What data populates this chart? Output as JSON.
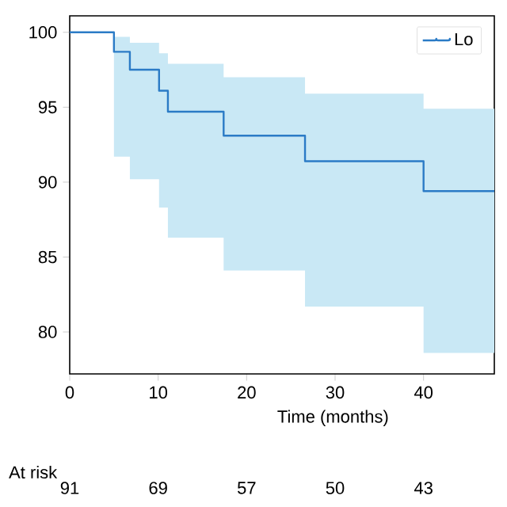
{
  "chart_data": {
    "type": "step",
    "xlabel": "Time (months)",
    "xlim": [
      0,
      48
    ],
    "xticks": [
      0,
      10,
      20,
      30,
      40
    ],
    "ylim": [
      77.2,
      101.1
    ],
    "yticks": [
      80,
      85,
      90,
      95,
      100
    ],
    "legend": "top right",
    "x": [
      0,
      5,
      6.8,
      10.1,
      11.1,
      17.4,
      26.6,
      40,
      48
    ],
    "series": [
      {
        "name": "Lo",
        "color": "#2b7bc6",
        "values": [
          100,
          98.7,
          97.5,
          96.1,
          94.7,
          93.1,
          91.4,
          89.4,
          89.4
        ],
        "lower": [
          100,
          91.7,
          90.2,
          88.3,
          86.3,
          84.1,
          81.7,
          78.6,
          78.6
        ],
        "upper": [
          100,
          99.7,
          99.3,
          98.6,
          97.9,
          97.0,
          95.9,
          94.9,
          94.9
        ]
      }
    ],
    "annotations": [
      "At risk",
      "91",
      "69",
      "57",
      "50",
      "43"
    ]
  }
}
